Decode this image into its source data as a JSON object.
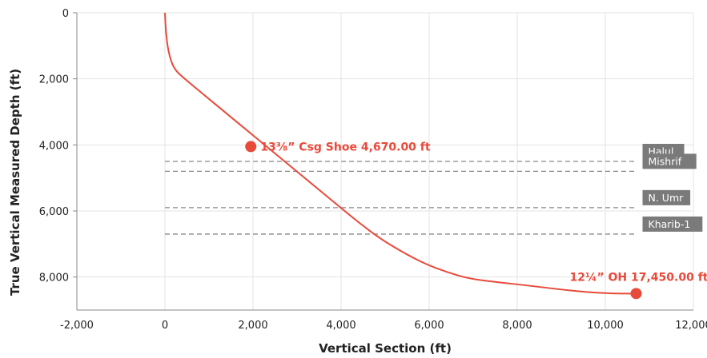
{
  "chart_data": {
    "type": "line",
    "xlabel": "Vertical Section (ft)",
    "ylabel": "True Vertical Measured Depth (ft)",
    "xlim": [
      -2000,
      12000
    ],
    "ylim": [
      0,
      9000
    ],
    "y_inverted": true,
    "grid": true,
    "x_ticks": [
      -2000,
      0,
      2000,
      4000,
      6000,
      8000,
      10000,
      12000
    ],
    "x_tick_labels": [
      "-2,000",
      "0",
      "2,000",
      "4,000",
      "6,000",
      "8,000",
      "10,000",
      "12,000"
    ],
    "y_ticks": [
      0,
      2000,
      4000,
      6000,
      8000
    ],
    "y_tick_labels": [
      "0",
      "2,000",
      "4,000",
      "6,000",
      "8,000"
    ],
    "series": [
      {
        "color": "#e84a3a",
        "x": [
          0,
          20,
          80,
          200,
          450,
          900,
          1400,
          1900,
          2400,
          2900,
          3400,
          3900,
          4400,
          4900,
          5400,
          5900,
          6400,
          6900,
          7500,
          8200,
          9000,
          9600,
          10000,
          10300,
          10700
        ],
        "y": [
          0,
          600,
          1200,
          1700,
          2000,
          2500,
          3050,
          3600,
          4150,
          4700,
          5250,
          5800,
          6350,
          6850,
          7250,
          7600,
          7850,
          8050,
          8150,
          8250,
          8380,
          8460,
          8490,
          8500,
          8500
        ]
      }
    ],
    "markers": [
      {
        "x": 1950,
        "y": 4050,
        "label": "13⅜” Csg Shoe 4,670.00 ft",
        "position": "right"
      },
      {
        "x": 10700,
        "y": 8500,
        "label": "12¼” OH 17,450.00 ft",
        "position": "above-left"
      }
    ],
    "formations": [
      {
        "name": "Halul",
        "depth": 4500
      },
      {
        "name": "Mishrif",
        "depth": 4800
      },
      {
        "name": "N. Umr",
        "depth": 5900
      },
      {
        "name": "Kharib-1",
        "depth": 6700
      }
    ],
    "formation_line_x_range": [
      0,
      10700
    ],
    "colors": {
      "path": "#e84a3a",
      "formation_line": "#888888",
      "formation_label_bg": "#7a7a7a"
    }
  }
}
